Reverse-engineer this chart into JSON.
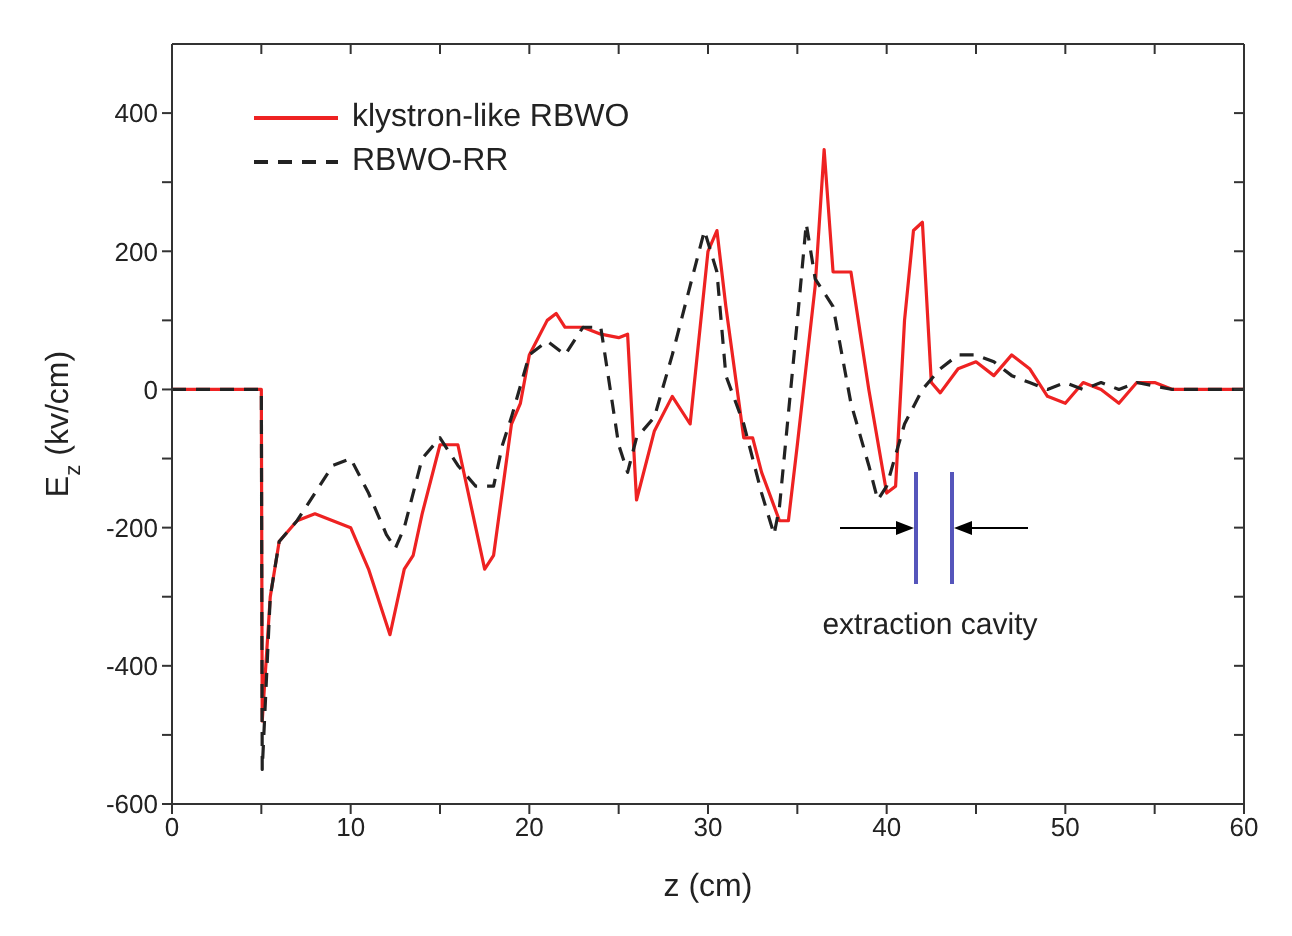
{
  "chart_data": {
    "type": "line",
    "xlabel": "z (cm)",
    "ylabel": "E$_{z}$ (kv/cm)",
    "xlim": [
      0,
      60
    ],
    "xticks": [
      0,
      {
        "value": 5,
        "label": null
      },
      10,
      {
        "value": 15,
        "label": null
      },
      20,
      {
        "value": 25,
        "label": null
      },
      30,
      {
        "value": 35,
        "label": null
      },
      40,
      {
        "value": 45,
        "label": null
      },
      50,
      {
        "value": 55,
        "label": null
      },
      60
    ],
    "ylim": [
      -600,
      500
    ],
    "yticks": [
      -600,
      {
        "value": -500,
        "label": null
      },
      -400,
      {
        "value": -300,
        "label": null
      },
      -200,
      {
        "value": -100,
        "label": null
      },
      0,
      {
        "value": 100,
        "label": null
      },
      200,
      {
        "value": 300,
        "label": null
      },
      400
    ],
    "legend": "top left",
    "annotations": [
      "extraction cavity"
    ],
    "series": [
      {
        "name": "klystron-like RBWO",
        "color": "#ee2222",
        "line_style": "solid",
        "x": [
          0,
          5,
          5.05,
          5.5,
          6,
          7,
          8,
          9,
          10,
          11,
          12.2,
          13,
          13.5,
          14,
          15,
          16,
          17,
          17.5,
          18,
          19,
          19.5,
          20,
          21,
          21.5,
          22,
          23,
          24,
          25,
          25.5,
          26,
          27,
          28,
          29,
          30,
          30.5,
          31,
          32,
          32.5,
          33,
          34,
          34.5,
          35,
          36,
          36.5,
          37,
          38,
          39,
          40,
          40.5,
          41,
          41.5,
          42,
          42.5,
          43,
          44,
          45,
          46,
          47,
          48,
          49,
          50,
          51,
          52,
          53,
          54,
          55,
          56,
          58,
          60
        ],
        "values": [
          0,
          0,
          -480,
          -300,
          -220,
          -190,
          -180,
          -190,
          -200,
          -260,
          -355,
          -260,
          -240,
          -180,
          -80,
          -80,
          -200,
          -260,
          -240,
          -50,
          -20,
          50,
          100,
          110,
          90,
          90,
          80,
          75,
          80,
          -160,
          -60,
          -10,
          -50,
          200,
          230,
          120,
          -70,
          -70,
          -120,
          -190,
          -190,
          -80,
          150,
          347,
          170,
          170,
          0,
          -150,
          -140,
          100,
          230,
          242,
          10,
          -5,
          30,
          40,
          20,
          50,
          30,
          -10,
          -20,
          10,
          0,
          -20,
          10,
          10,
          0,
          0,
          0
        ]
      },
      {
        "name": "RBWO-RR",
        "color": "#222222",
        "line_style": "dashed",
        "x": [
          0,
          5,
          5.05,
          5.5,
          6,
          7,
          8,
          9,
          10,
          11,
          12,
          12.5,
          13,
          14,
          15,
          16,
          17,
          18,
          18.5,
          19,
          20,
          21,
          22,
          23,
          24,
          25,
          25.5,
          26,
          27,
          28,
          29,
          29.8,
          30.5,
          31,
          32,
          33,
          33.7,
          34,
          35,
          35.5,
          36,
          37,
          38,
          39,
          39.5,
          40,
          41,
          42,
          43,
          44,
          45,
          46,
          47,
          48,
          49,
          50,
          51,
          52,
          53,
          54,
          56,
          60
        ],
        "values": [
          0,
          0,
          -550,
          -300,
          -220,
          -190,
          -150,
          -110,
          -100,
          -150,
          -210,
          -230,
          -200,
          -100,
          -70,
          -110,
          -140,
          -140,
          -80,
          -40,
          50,
          70,
          50,
          90,
          90,
          -80,
          -120,
          -70,
          -40,
          50,
          150,
          230,
          170,
          20,
          -50,
          -150,
          -210,
          -170,
          100,
          240,
          160,
          120,
          -20,
          -110,
          -160,
          -140,
          -50,
          0,
          30,
          50,
          50,
          40,
          20,
          10,
          0,
          10,
          0,
          10,
          0,
          10,
          0,
          0
        ]
      }
    ]
  }
}
